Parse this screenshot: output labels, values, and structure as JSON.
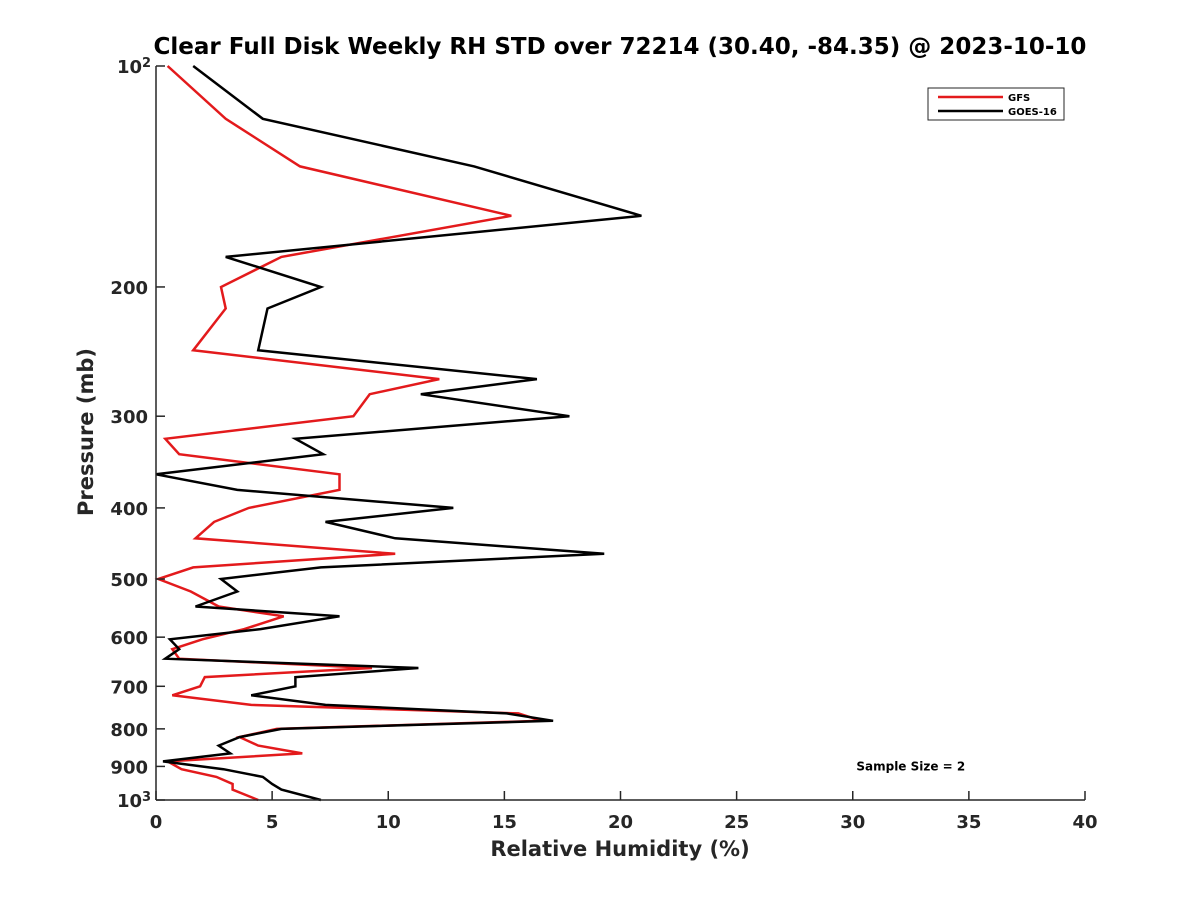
{
  "chart_data": {
    "type": "line",
    "title": "Clear Full Disk Weekly RH STD over 72214 (30.40, -84.35) @ 2023-10-10",
    "xlabel": "Relative Humidity (%)",
    "ylabel": "Pressure (mb)",
    "xlim": [
      0,
      40
    ],
    "ylim": [
      100,
      1000
    ],
    "yscale": "log",
    "y_reversed": true,
    "xticks": [
      0,
      5,
      10,
      15,
      20,
      25,
      30,
      35,
      40
    ],
    "yticks": [
      {
        "value": 100,
        "label": "10",
        "sup": "2"
      },
      {
        "value": 200,
        "label": "200",
        "sup": ""
      },
      {
        "value": 300,
        "label": "300",
        "sup": ""
      },
      {
        "value": 400,
        "label": "400",
        "sup": ""
      },
      {
        "value": 500,
        "label": "500",
        "sup": ""
      },
      {
        "value": 600,
        "label": "600",
        "sup": ""
      },
      {
        "value": 700,
        "label": "700",
        "sup": ""
      },
      {
        "value": 800,
        "label": "800",
        "sup": ""
      },
      {
        "value": 900,
        "label": "900",
        "sup": ""
      },
      {
        "value": 1000,
        "label": "10",
        "sup": "3"
      }
    ],
    "grid": false,
    "legend_position": "top-right",
    "series": [
      {
        "name": "GFS",
        "color": "#e31a1c",
        "points": [
          [
            0.5,
            100
          ],
          [
            3.0,
            118
          ],
          [
            6.2,
            137
          ],
          [
            15.3,
            160
          ],
          [
            5.4,
            182
          ],
          [
            2.8,
            200
          ],
          [
            3.0,
            214
          ],
          [
            1.6,
            244
          ],
          [
            12.2,
            267
          ],
          [
            9.2,
            280
          ],
          [
            8.5,
            300
          ],
          [
            0.4,
            322
          ],
          [
            1.0,
            338
          ],
          [
            7.9,
            360
          ],
          [
            7.9,
            378
          ],
          [
            4.0,
            400
          ],
          [
            2.5,
            418
          ],
          [
            1.7,
            440
          ],
          [
            10.3,
            462
          ],
          [
            1.6,
            482
          ],
          [
            0.1,
            500
          ],
          [
            1.5,
            520
          ],
          [
            2.7,
            545
          ],
          [
            5.5,
            562
          ],
          [
            3.8,
            585
          ],
          [
            2.0,
            604
          ],
          [
            0.7,
            623
          ],
          [
            1.0,
            642
          ],
          [
            9.3,
            661
          ],
          [
            2.1,
            680
          ],
          [
            1.9,
            700
          ],
          [
            0.7,
            720
          ],
          [
            4.1,
            742
          ],
          [
            15.6,
            762
          ],
          [
            16.6,
            780
          ],
          [
            5.2,
            800
          ],
          [
            3.6,
            821
          ],
          [
            4.4,
            843
          ],
          [
            6.3,
            864
          ],
          [
            0.5,
            886
          ],
          [
            1.1,
            908
          ],
          [
            2.6,
            930
          ],
          [
            3.3,
            951
          ],
          [
            3.3,
            968
          ],
          [
            4.4,
            1000
          ]
        ]
      },
      {
        "name": "GOES-16",
        "color": "#000000",
        "points": [
          [
            1.6,
            100
          ],
          [
            4.6,
            118
          ],
          [
            13.7,
            137
          ],
          [
            20.9,
            160
          ],
          [
            3.0,
            182
          ],
          [
            7.1,
            200
          ],
          [
            4.8,
            214
          ],
          [
            4.4,
            244
          ],
          [
            16.4,
            267
          ],
          [
            11.4,
            280
          ],
          [
            17.8,
            300
          ],
          [
            6.0,
            322
          ],
          [
            7.2,
            338
          ],
          [
            0.0,
            360
          ],
          [
            3.5,
            378
          ],
          [
            12.8,
            400
          ],
          [
            7.3,
            418
          ],
          [
            10.3,
            440
          ],
          [
            19.3,
            462
          ],
          [
            7.1,
            482
          ],
          [
            2.8,
            500
          ],
          [
            3.5,
            520
          ],
          [
            1.7,
            545
          ],
          [
            7.9,
            562
          ],
          [
            4.5,
            585
          ],
          [
            0.6,
            604
          ],
          [
            1.0,
            623
          ],
          [
            0.4,
            642
          ],
          [
            11.3,
            661
          ],
          [
            6.0,
            680
          ],
          [
            6.0,
            700
          ],
          [
            4.1,
            720
          ],
          [
            7.3,
            742
          ],
          [
            15.1,
            762
          ],
          [
            17.1,
            780
          ],
          [
            5.4,
            800
          ],
          [
            3.6,
            821
          ],
          [
            2.7,
            843
          ],
          [
            3.2,
            864
          ],
          [
            0.3,
            886
          ],
          [
            2.9,
            908
          ],
          [
            4.6,
            930
          ],
          [
            5.0,
            951
          ],
          [
            5.4,
            968
          ],
          [
            7.1,
            1000
          ]
        ]
      }
    ],
    "annotations": [
      {
        "text": "Sample Size = 2",
        "x": 32.5,
        "y": 900
      }
    ]
  }
}
